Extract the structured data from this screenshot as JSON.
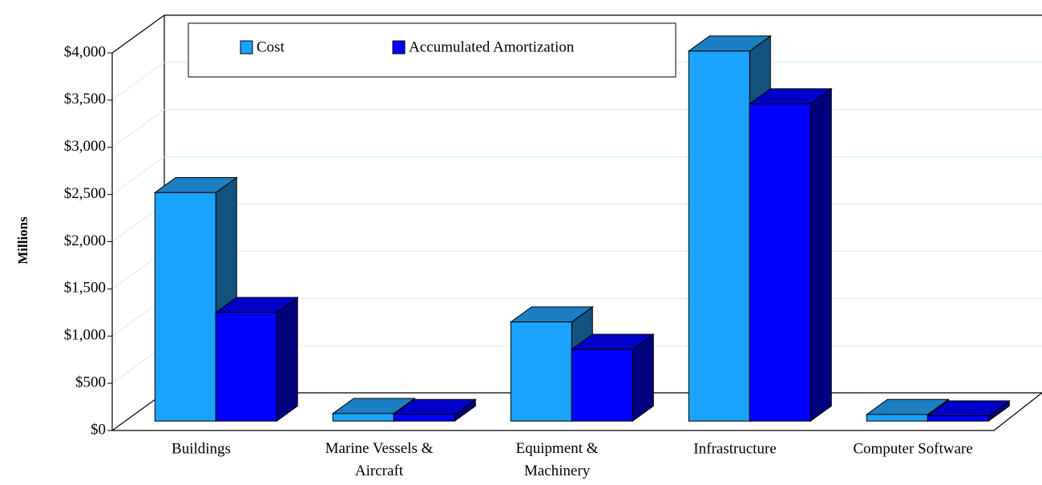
{
  "chart_data": {
    "type": "bar3d",
    "y_label": "Millions",
    "categories": [
      "Buildings",
      "Marine Vessels & Aircraft",
      "Equipment & Machinery",
      "Infrastructure",
      "Computer Software"
    ],
    "series": [
      {
        "name": "Cost",
        "color": "#1aa3ff",
        "top": "#1c7fc2",
        "side": "#12527c",
        "values": [
          2420,
          80,
          1050,
          3920,
          70
        ]
      },
      {
        "name": "Accumulated Amortization",
        "color": "#0000ff",
        "top": "#0000c8",
        "side": "#00007c",
        "values": [
          1150,
          70,
          760,
          3360,
          55
        ]
      }
    ],
    "ylim": [
      0,
      4000
    ],
    "yticks": [
      {
        "value": 0,
        "label": "$0"
      },
      {
        "value": 500,
        "label": "$500"
      },
      {
        "value": 1000,
        "label": "$1,000"
      },
      {
        "value": 1500,
        "label": "$1,500"
      },
      {
        "value": 2000,
        "label": "$2,000"
      },
      {
        "value": 2500,
        "label": "$2,500"
      },
      {
        "value": 3000,
        "label": "$3,000"
      },
      {
        "value": 3500,
        "label": "$3,500"
      },
      {
        "value": 4000,
        "label": "$4,000"
      }
    ],
    "grid": true
  }
}
